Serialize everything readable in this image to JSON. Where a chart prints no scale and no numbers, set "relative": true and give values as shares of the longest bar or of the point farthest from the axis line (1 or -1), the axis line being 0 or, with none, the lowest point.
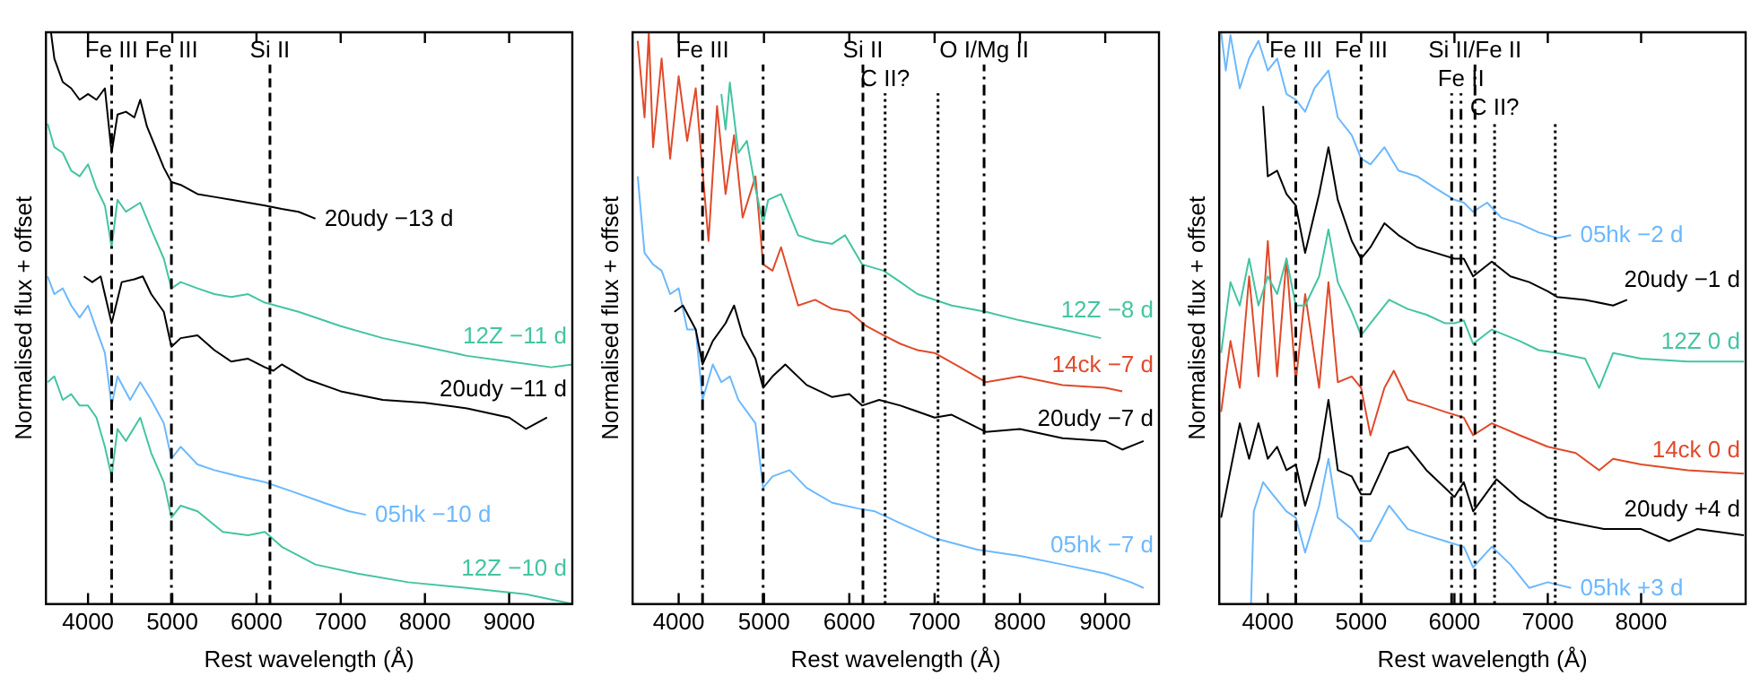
{
  "chart_data": [
    {
      "type": "line",
      "xlabel": "Rest wavelength (Å)",
      "ylabel": "Normalised flux + offset",
      "relative": true,
      "legend": false,
      "grid": false,
      "tick_labels": "x",
      "xlim": [
        3500,
        9750
      ],
      "xticks": [
        4000,
        5000,
        6000,
        7000,
        8000,
        9000
      ],
      "ref_lines": [
        {
          "axis": "x",
          "value": 4280,
          "label": "Fe III",
          "line_style": "dashdot"
        },
        {
          "axis": "x",
          "value": 4990,
          "label": "Fe III",
          "line_style": "dashdot"
        },
        {
          "axis": "x",
          "value": 6160,
          "label": "Si II",
          "line_style": "dashed"
        }
      ],
      "series": [
        {
          "name": "20udy −13 d",
          "color": "#000000",
          "x": [
            3560,
            3600,
            3700,
            3800,
            3900,
            4000,
            4100,
            4200,
            4280,
            4350,
            4450,
            4550,
            4620,
            4700,
            4800,
            4900,
            4990,
            5100,
            5300,
            5500,
            5700,
            5900,
            6100,
            6300,
            6500,
            6700
          ],
          "values": [
            1.0,
            0.954,
            0.913,
            0.902,
            0.882,
            0.892,
            0.882,
            0.902,
            0.789,
            0.856,
            0.861,
            0.851,
            0.882,
            0.835,
            0.799,
            0.763,
            0.738,
            0.733,
            0.717,
            0.712,
            0.707,
            0.702,
            0.697,
            0.691,
            0.686,
            0.674
          ]
        },
        {
          "name": "12Z −11 d",
          "color": "#44c4a1",
          "x": [
            3520,
            3600,
            3700,
            3800,
            3900,
            4000,
            4100,
            4200,
            4280,
            4350,
            4450,
            4620,
            4750,
            4900,
            4990,
            5100,
            5300,
            5500,
            5700,
            5900,
            6100,
            6500,
            7000,
            7500,
            8000,
            8500,
            9000,
            9500,
            9750
          ],
          "values": [
            0.84,
            0.799,
            0.789,
            0.758,
            0.748,
            0.769,
            0.727,
            0.697,
            0.624,
            0.707,
            0.686,
            0.702,
            0.655,
            0.604,
            0.552,
            0.563,
            0.552,
            0.542,
            0.537,
            0.542,
            0.527,
            0.511,
            0.486,
            0.465,
            0.45,
            0.434,
            0.424,
            0.414,
            0.419
          ]
        },
        {
          "name": "20udy −11 d",
          "color": "#000000",
          "x": [
            3950,
            4050,
            4150,
            4280,
            4400,
            4550,
            4650,
            4750,
            4900,
            4990,
            5100,
            5300,
            5500,
            5700,
            5900,
            6100,
            6200,
            6300,
            6600,
            7000,
            7500,
            8000,
            8500,
            9000,
            9200,
            9450
          ],
          "values": [
            0.573,
            0.563,
            0.573,
            0.491,
            0.563,
            0.568,
            0.573,
            0.542,
            0.511,
            0.45,
            0.465,
            0.47,
            0.444,
            0.424,
            0.429,
            0.414,
            0.408,
            0.419,
            0.393,
            0.372,
            0.357,
            0.352,
            0.342,
            0.326,
            0.306,
            0.326
          ]
        },
        {
          "name": "05hk −10 d",
          "color": "#6cb8ff",
          "x": [
            3520,
            3600,
            3700,
            3800,
            3900,
            4000,
            4100,
            4200,
            4280,
            4350,
            4500,
            4620,
            4750,
            4900,
            4990,
            5100,
            5300,
            5500,
            5800,
            6100,
            6400,
            6800,
            7100,
            7300
          ],
          "values": [
            0.573,
            0.542,
            0.552,
            0.522,
            0.501,
            0.522,
            0.48,
            0.439,
            0.347,
            0.398,
            0.357,
            0.388,
            0.357,
            0.316,
            0.254,
            0.275,
            0.244,
            0.234,
            0.223,
            0.213,
            0.198,
            0.177,
            0.162,
            0.156
          ]
        },
        {
          "name": "12Z −10 d",
          "color": "#44c4a1",
          "x": [
            3520,
            3600,
            3700,
            3800,
            3900,
            4000,
            4100,
            4200,
            4280,
            4350,
            4450,
            4620,
            4750,
            4900,
            4990,
            5100,
            5300,
            5600,
            5900,
            6100,
            6300,
            6700,
            7200,
            7800,
            8500,
            9200,
            9750
          ],
          "values": [
            0.388,
            0.398,
            0.357,
            0.367,
            0.347,
            0.347,
            0.326,
            0.275,
            0.223,
            0.306,
            0.285,
            0.326,
            0.264,
            0.213,
            0.151,
            0.172,
            0.162,
            0.126,
            0.12,
            0.126,
            0.1,
            0.069,
            0.053,
            0.038,
            0.028,
            0.017,
            0.0
          ]
        }
      ]
    },
    {
      "type": "line",
      "xlabel": "Rest wavelength (Å)",
      "ylabel": "Normalised flux + offset",
      "relative": true,
      "legend": false,
      "grid": false,
      "tick_labels": "x",
      "xlim": [
        3460,
        9630
      ],
      "xticks": [
        4000,
        5000,
        6000,
        7000,
        8000,
        9000
      ],
      "ref_lines": [
        {
          "axis": "x",
          "value": 4280,
          "label": "Fe III",
          "line_style": "dashdot"
        },
        {
          "axis": "x",
          "value": 4990,
          "line_style": "dashdot"
        },
        {
          "axis": "x",
          "value": 6160,
          "label": "Si II",
          "line_style": "dashed"
        },
        {
          "axis": "x",
          "value": 6420,
          "label": "C II?",
          "line_style": "dotted"
        },
        {
          "axis": "x",
          "value": 7040,
          "line_style": "dotted"
        },
        {
          "axis": "x",
          "value": 7580,
          "label": "O I/Mg II",
          "line_style": "dashdot"
        }
      ],
      "series": [
        {
          "name": "12Z −8 d",
          "color": "#44c4a1",
          "x": [
            4500,
            4550,
            4600,
            4700,
            4800,
            4900,
            4990,
            5050,
            5200,
            5400,
            5600,
            5800,
            5950,
            6150,
            6400,
            6600,
            6800,
            7200,
            7600,
            8000,
            8500,
            8950
          ],
          "values": [
            0.892,
            0.83,
            0.912,
            0.789,
            0.81,
            0.727,
            0.666,
            0.707,
            0.717,
            0.645,
            0.635,
            0.63,
            0.645,
            0.594,
            0.583,
            0.563,
            0.542,
            0.522,
            0.511,
            0.496,
            0.48,
            0.465
          ]
        },
        {
          "name": "14ck −7 d",
          "color": "#e04a2a",
          "x": [
            3520,
            3600,
            3650,
            3700,
            3800,
            3900,
            4000,
            4100,
            4200,
            4280,
            4350,
            4450,
            4550,
            4650,
            4750,
            4900,
            4990,
            5100,
            5200,
            5400,
            5600,
            5800,
            6000,
            6200,
            6400,
            6600,
            6800,
            7000,
            7300,
            7600,
            8000,
            8500,
            9000,
            9200
          ],
          "values": [
            0.985,
            0.851,
            1.0,
            0.799,
            0.954,
            0.779,
            0.923,
            0.81,
            0.902,
            0.758,
            0.635,
            0.871,
            0.717,
            0.82,
            0.676,
            0.748,
            0.594,
            0.583,
            0.624,
            0.522,
            0.532,
            0.516,
            0.511,
            0.486,
            0.47,
            0.455,
            0.444,
            0.439,
            0.414,
            0.388,
            0.398,
            0.383,
            0.378,
            0.372
          ]
        },
        {
          "name": "20udy −7 d",
          "color": "#000000",
          "x": [
            3950,
            4050,
            4200,
            4280,
            4400,
            4550,
            4650,
            4750,
            4900,
            4990,
            5100,
            5250,
            5500,
            5800,
            6000,
            6150,
            6350,
            6600,
            7000,
            7200,
            7600,
            8000,
            8500,
            9000,
            9200,
            9450
          ],
          "values": [
            0.511,
            0.522,
            0.48,
            0.419,
            0.46,
            0.491,
            0.522,
            0.47,
            0.429,
            0.378,
            0.398,
            0.419,
            0.383,
            0.362,
            0.367,
            0.347,
            0.357,
            0.347,
            0.326,
            0.331,
            0.301,
            0.306,
            0.29,
            0.285,
            0.27,
            0.285
          ]
        },
        {
          "name": "05hk −7 d",
          "color": "#6cb8ff",
          "x": [
            3520,
            3600,
            3700,
            3800,
            3900,
            4000,
            4100,
            4200,
            4280,
            4400,
            4500,
            4600,
            4700,
            4900,
            4990,
            5100,
            5300,
            5500,
            5800,
            6100,
            6300,
            6600,
            7000,
            7500,
            8000,
            8500,
            9000,
            9300,
            9450
          ],
          "values": [
            0.748,
            0.614,
            0.594,
            0.583,
            0.542,
            0.552,
            0.48,
            0.48,
            0.357,
            0.419,
            0.388,
            0.398,
            0.357,
            0.316,
            0.203,
            0.223,
            0.234,
            0.203,
            0.177,
            0.167,
            0.162,
            0.141,
            0.115,
            0.095,
            0.084,
            0.069,
            0.053,
            0.038,
            0.028
          ]
        }
      ]
    },
    {
      "type": "line",
      "xlabel": "Rest wavelength (Å)",
      "ylabel": "Normalised flux + offset",
      "relative": true,
      "legend": false,
      "grid": false,
      "tick_labels": "x",
      "xlim": [
        3480,
        9120
      ],
      "xticks": [
        4000,
        5000,
        6000,
        7000,
        8000
      ],
      "ref_lines": [
        {
          "axis": "x",
          "value": 4300,
          "label": "Fe III",
          "line_style": "dashdot"
        },
        {
          "axis": "x",
          "value": 5000,
          "label": "Fe III",
          "line_style": "dashdot"
        },
        {
          "axis": "x",
          "value": 6220,
          "label": "Si II/Fe II",
          "line_style": "dashdot"
        },
        {
          "axis": "x",
          "value": 6070,
          "label": "Fe II",
          "line_style": "dashdot"
        },
        {
          "axis": "x",
          "value": 5970,
          "line_style": "dashdot"
        },
        {
          "axis": "x",
          "value": 6430,
          "label": "C II?",
          "line_style": "dotted"
        },
        {
          "axis": "x",
          "value": 7080,
          "line_style": "dotted"
        }
      ],
      "series": [
        {
          "name": "05hk −2 d",
          "color": "#6cb8ff",
          "x": [
            3500,
            3550,
            3600,
            3700,
            3800,
            3900,
            4000,
            4100,
            4200,
            4300,
            4400,
            4500,
            4650,
            4750,
            4900,
            5000,
            5100,
            5250,
            5400,
            5600,
            5800,
            6000,
            6100,
            6200,
            6350,
            6500,
            6700,
            6900,
            7100,
            7250
          ],
          "values": [
            1.0,
            0.933,
            0.995,
            0.902,
            0.954,
            0.985,
            0.933,
            0.954,
            0.892,
            0.882,
            0.861,
            0.902,
            0.933,
            0.851,
            0.82,
            0.779,
            0.769,
            0.799,
            0.758,
            0.748,
            0.727,
            0.707,
            0.702,
            0.686,
            0.702,
            0.676,
            0.665,
            0.65,
            0.64,
            0.645
          ]
        },
        {
          "name": "20udy −1 d",
          "color": "#000000",
          "x": [
            3950,
            4000,
            4100,
            4200,
            4300,
            4400,
            4550,
            4650,
            4750,
            4900,
            5000,
            5100,
            5250,
            5400,
            5600,
            5800,
            6000,
            6100,
            6200,
            6400,
            6600,
            6800,
            7000,
            7100,
            7400,
            7700,
            7850
          ],
          "values": [
            0.871,
            0.748,
            0.758,
            0.717,
            0.697,
            0.614,
            0.717,
            0.799,
            0.707,
            0.635,
            0.604,
            0.624,
            0.666,
            0.645,
            0.624,
            0.614,
            0.604,
            0.604,
            0.573,
            0.599,
            0.573,
            0.563,
            0.547,
            0.537,
            0.532,
            0.522,
            0.532
          ]
        },
        {
          "name": "12Z 0 d",
          "color": "#44c4a1",
          "x": [
            3500,
            3600,
            3700,
            3800,
            3900,
            4000,
            4100,
            4200,
            4300,
            4400,
            4550,
            4650,
            4750,
            4900,
            5000,
            5100,
            5300,
            5500,
            5700,
            5900,
            6000,
            6100,
            6200,
            6400,
            6700,
            6900,
            7100,
            7400,
            7550,
            7700,
            8000,
            8500,
            9100
          ],
          "values": [
            0.439,
            0.563,
            0.522,
            0.604,
            0.522,
            0.573,
            0.542,
            0.604,
            0.522,
            0.522,
            0.573,
            0.655,
            0.563,
            0.511,
            0.47,
            0.491,
            0.532,
            0.516,
            0.506,
            0.491,
            0.491,
            0.496,
            0.455,
            0.48,
            0.46,
            0.444,
            0.439,
            0.429,
            0.378,
            0.439,
            0.429,
            0.424,
            0.424
          ]
        },
        {
          "name": "14ck 0 d",
          "color": "#e04a2a",
          "x": [
            3500,
            3600,
            3700,
            3800,
            3900,
            4000,
            4100,
            4200,
            4300,
            4400,
            4550,
            4650,
            4750,
            4900,
            5000,
            5100,
            5250,
            5350,
            5500,
            5700,
            5900,
            6100,
            6200,
            6400,
            6700,
            7000,
            7300,
            7550,
            7700,
            8000,
            8500,
            9100
          ],
          "values": [
            0.336,
            0.46,
            0.378,
            0.573,
            0.398,
            0.635,
            0.398,
            0.604,
            0.388,
            0.542,
            0.378,
            0.563,
            0.388,
            0.398,
            0.378,
            0.295,
            0.378,
            0.408,
            0.357,
            0.347,
            0.336,
            0.326,
            0.295,
            0.316,
            0.295,
            0.275,
            0.264,
            0.234,
            0.254,
            0.244,
            0.234,
            0.228
          ]
        },
        {
          "name": "20udy +4 d",
          "color": "#000000",
          "x": [
            3500,
            3600,
            3700,
            3800,
            3900,
            4000,
            4100,
            4200,
            4300,
            4400,
            4550,
            4650,
            4750,
            4900,
            5000,
            5100,
            5300,
            5500,
            5700,
            5900,
            6000,
            6100,
            6200,
            6450,
            6700,
            7000,
            7300,
            7600,
            8000,
            8300,
            8600,
            9100
          ],
          "values": [
            0.151,
            0.234,
            0.316,
            0.254,
            0.316,
            0.254,
            0.275,
            0.234,
            0.244,
            0.172,
            0.254,
            0.357,
            0.234,
            0.223,
            0.192,
            0.192,
            0.264,
            0.275,
            0.234,
            0.203,
            0.187,
            0.213,
            0.162,
            0.218,
            0.182,
            0.151,
            0.141,
            0.131,
            0.131,
            0.11,
            0.131,
            0.12
          ]
        },
        {
          "name": "05hk +3 d",
          "color": "#6cb8ff",
          "x": [
            3820,
            3850,
            3950,
            4050,
            4200,
            4300,
            4400,
            4550,
            4650,
            4750,
            4900,
            5000,
            5100,
            5300,
            5500,
            5700,
            5900,
            6100,
            6200,
            6400,
            6600,
            6800,
            7000,
            7250
          ],
          "values": [
            0.0,
            0.162,
            0.213,
            0.192,
            0.162,
            0.151,
            0.09,
            0.172,
            0.254,
            0.151,
            0.131,
            0.11,
            0.11,
            0.172,
            0.131,
            0.12,
            0.11,
            0.1,
            0.064,
            0.1,
            0.069,
            0.028,
            0.038,
            0.028
          ]
        }
      ]
    }
  ]
}
